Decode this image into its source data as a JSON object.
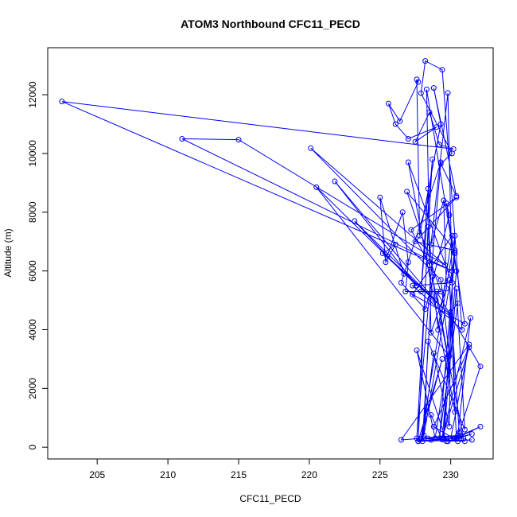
{
  "chart_data": {
    "type": "line",
    "title": "ATOM3 Northbound CFC11_PECD",
    "xlabel": "CFC11_PECD",
    "ylabel": "Altitude (m)",
    "xlim": [
      201.5,
      233
    ],
    "ylim": [
      -400,
      13600
    ],
    "xticks": [
      205,
      210,
      215,
      220,
      225,
      230
    ],
    "yticks": [
      0,
      2000,
      4000,
      6000,
      8000,
      10000,
      12000
    ],
    "grid": false,
    "legend": "none",
    "series": [
      {
        "color": "#0000ff",
        "marker": "open-circle",
        "points": [
          [
            228.6,
            1100
          ],
          [
            229.4,
            260
          ],
          [
            230.4,
            6000
          ],
          [
            228.3,
            12180
          ],
          [
            228.6,
            3900
          ],
          [
            229.7,
            5400
          ],
          [
            229.5,
            8400
          ],
          [
            228.6,
            6900
          ],
          [
            229.8,
            12060
          ],
          [
            230.3,
            1200
          ],
          [
            227.0,
            9700
          ],
          [
            230.1,
            5600
          ],
          [
            227.3,
            5500
          ],
          [
            230.8,
            4000
          ],
          [
            229.4,
            12850
          ],
          [
            228.2,
            13150
          ],
          [
            227.9,
            12050
          ],
          [
            230.1,
            10000
          ],
          [
            229.3,
            9650
          ],
          [
            230.4,
            8550
          ],
          [
            228.8,
            12230
          ],
          [
            229.3,
            11000
          ],
          [
            227.8,
            7200
          ],
          [
            227.6,
            12520
          ],
          [
            227.7,
            12430
          ],
          [
            226.4,
            11100
          ],
          [
            225.6,
            11700
          ],
          [
            226.1,
            11000
          ],
          [
            227.0,
            10500
          ],
          [
            229.0,
            10900
          ],
          [
            227.5,
            10400
          ],
          [
            228.5,
            11400
          ],
          [
            229.2,
            10300
          ],
          [
            230.2,
            10150
          ],
          [
            202.5,
            11770
          ],
          [
            230.1,
            6000
          ],
          [
            211.0,
            10500
          ],
          [
            215.0,
            10470
          ],
          [
            229.6,
            6200
          ],
          [
            220.1,
            10180
          ],
          [
            229.3,
            5700
          ],
          [
            229.9,
            3100
          ],
          [
            220.5,
            8850
          ],
          [
            227.6,
            5500
          ],
          [
            221.8,
            9050
          ],
          [
            228.9,
            5000
          ],
          [
            223.2,
            7700
          ],
          [
            226.7,
            5900
          ],
          [
            225.0,
            8500
          ],
          [
            225.4,
            6300
          ],
          [
            226.1,
            6900
          ],
          [
            225.2,
            6600
          ],
          [
            230.0,
            4500
          ],
          [
            225.5,
            6500
          ],
          [
            226.6,
            8000
          ],
          [
            227.0,
            6300
          ],
          [
            226.8,
            5300
          ],
          [
            229.3,
            5300
          ],
          [
            226.9,
            8700
          ],
          [
            230.3,
            6700
          ],
          [
            227.5,
            7000
          ],
          [
            230.4,
            8500
          ],
          [
            227.2,
            7400
          ],
          [
            228.5,
            6200
          ],
          [
            228.4,
            8800
          ],
          [
            227.9,
            5300
          ],
          [
            228.7,
            9800
          ],
          [
            227.6,
            300
          ],
          [
            229.3,
            9700
          ],
          [
            226.5,
            5600
          ],
          [
            228.2,
            4700
          ],
          [
            229.9,
            7900
          ],
          [
            229.7,
            8300
          ],
          [
            231.0,
            4200
          ],
          [
            227.3,
            5200
          ],
          [
            230.1,
            7200
          ],
          [
            229.1,
            4000
          ],
          [
            228.4,
            7500
          ],
          [
            227.7,
            200
          ],
          [
            229.4,
            3000
          ],
          [
            227.9,
            300
          ],
          [
            230.3,
            7200
          ],
          [
            229.5,
            300
          ],
          [
            230.4,
            5400
          ],
          [
            231.0,
            600
          ],
          [
            228.4,
            3600
          ],
          [
            228.1,
            400
          ],
          [
            230.3,
            6600
          ],
          [
            229.2,
            300
          ],
          [
            230.5,
            4900
          ],
          [
            230.0,
            4600
          ],
          [
            229.9,
            700
          ],
          [
            228.8,
            3200
          ],
          [
            228.0,
            200
          ],
          [
            228.7,
            5800
          ],
          [
            230.9,
            300
          ],
          [
            230.0,
            300
          ],
          [
            231.3,
            3500
          ],
          [
            226.5,
            250
          ],
          [
            230.5,
            400
          ],
          [
            231.4,
            4400
          ],
          [
            229.4,
            300
          ],
          [
            231.3,
            3400
          ],
          [
            228.8,
            700
          ],
          [
            230.2,
            300
          ],
          [
            232.1,
            700
          ],
          [
            230.4,
            300
          ],
          [
            229.9,
            5700
          ],
          [
            230.6,
            500
          ],
          [
            232.1,
            2750
          ],
          [
            229.0,
            5300
          ],
          [
            229.8,
            3100
          ],
          [
            228.9,
            300
          ],
          [
            227.6,
            3300
          ],
          [
            229.7,
            200
          ],
          [
            231.5,
            250
          ],
          [
            227.7,
            200
          ],
          [
            228.1,
            300
          ],
          [
            231.0,
            200
          ],
          [
            227.8,
            250
          ],
          [
            230.5,
            200
          ],
          [
            228.4,
            300
          ],
          [
            230.7,
            400
          ],
          [
            228.6,
            250
          ],
          [
            230.3,
            300
          ],
          [
            231.5,
            450
          ],
          [
            229.8,
            200
          ]
        ]
      }
    ]
  }
}
